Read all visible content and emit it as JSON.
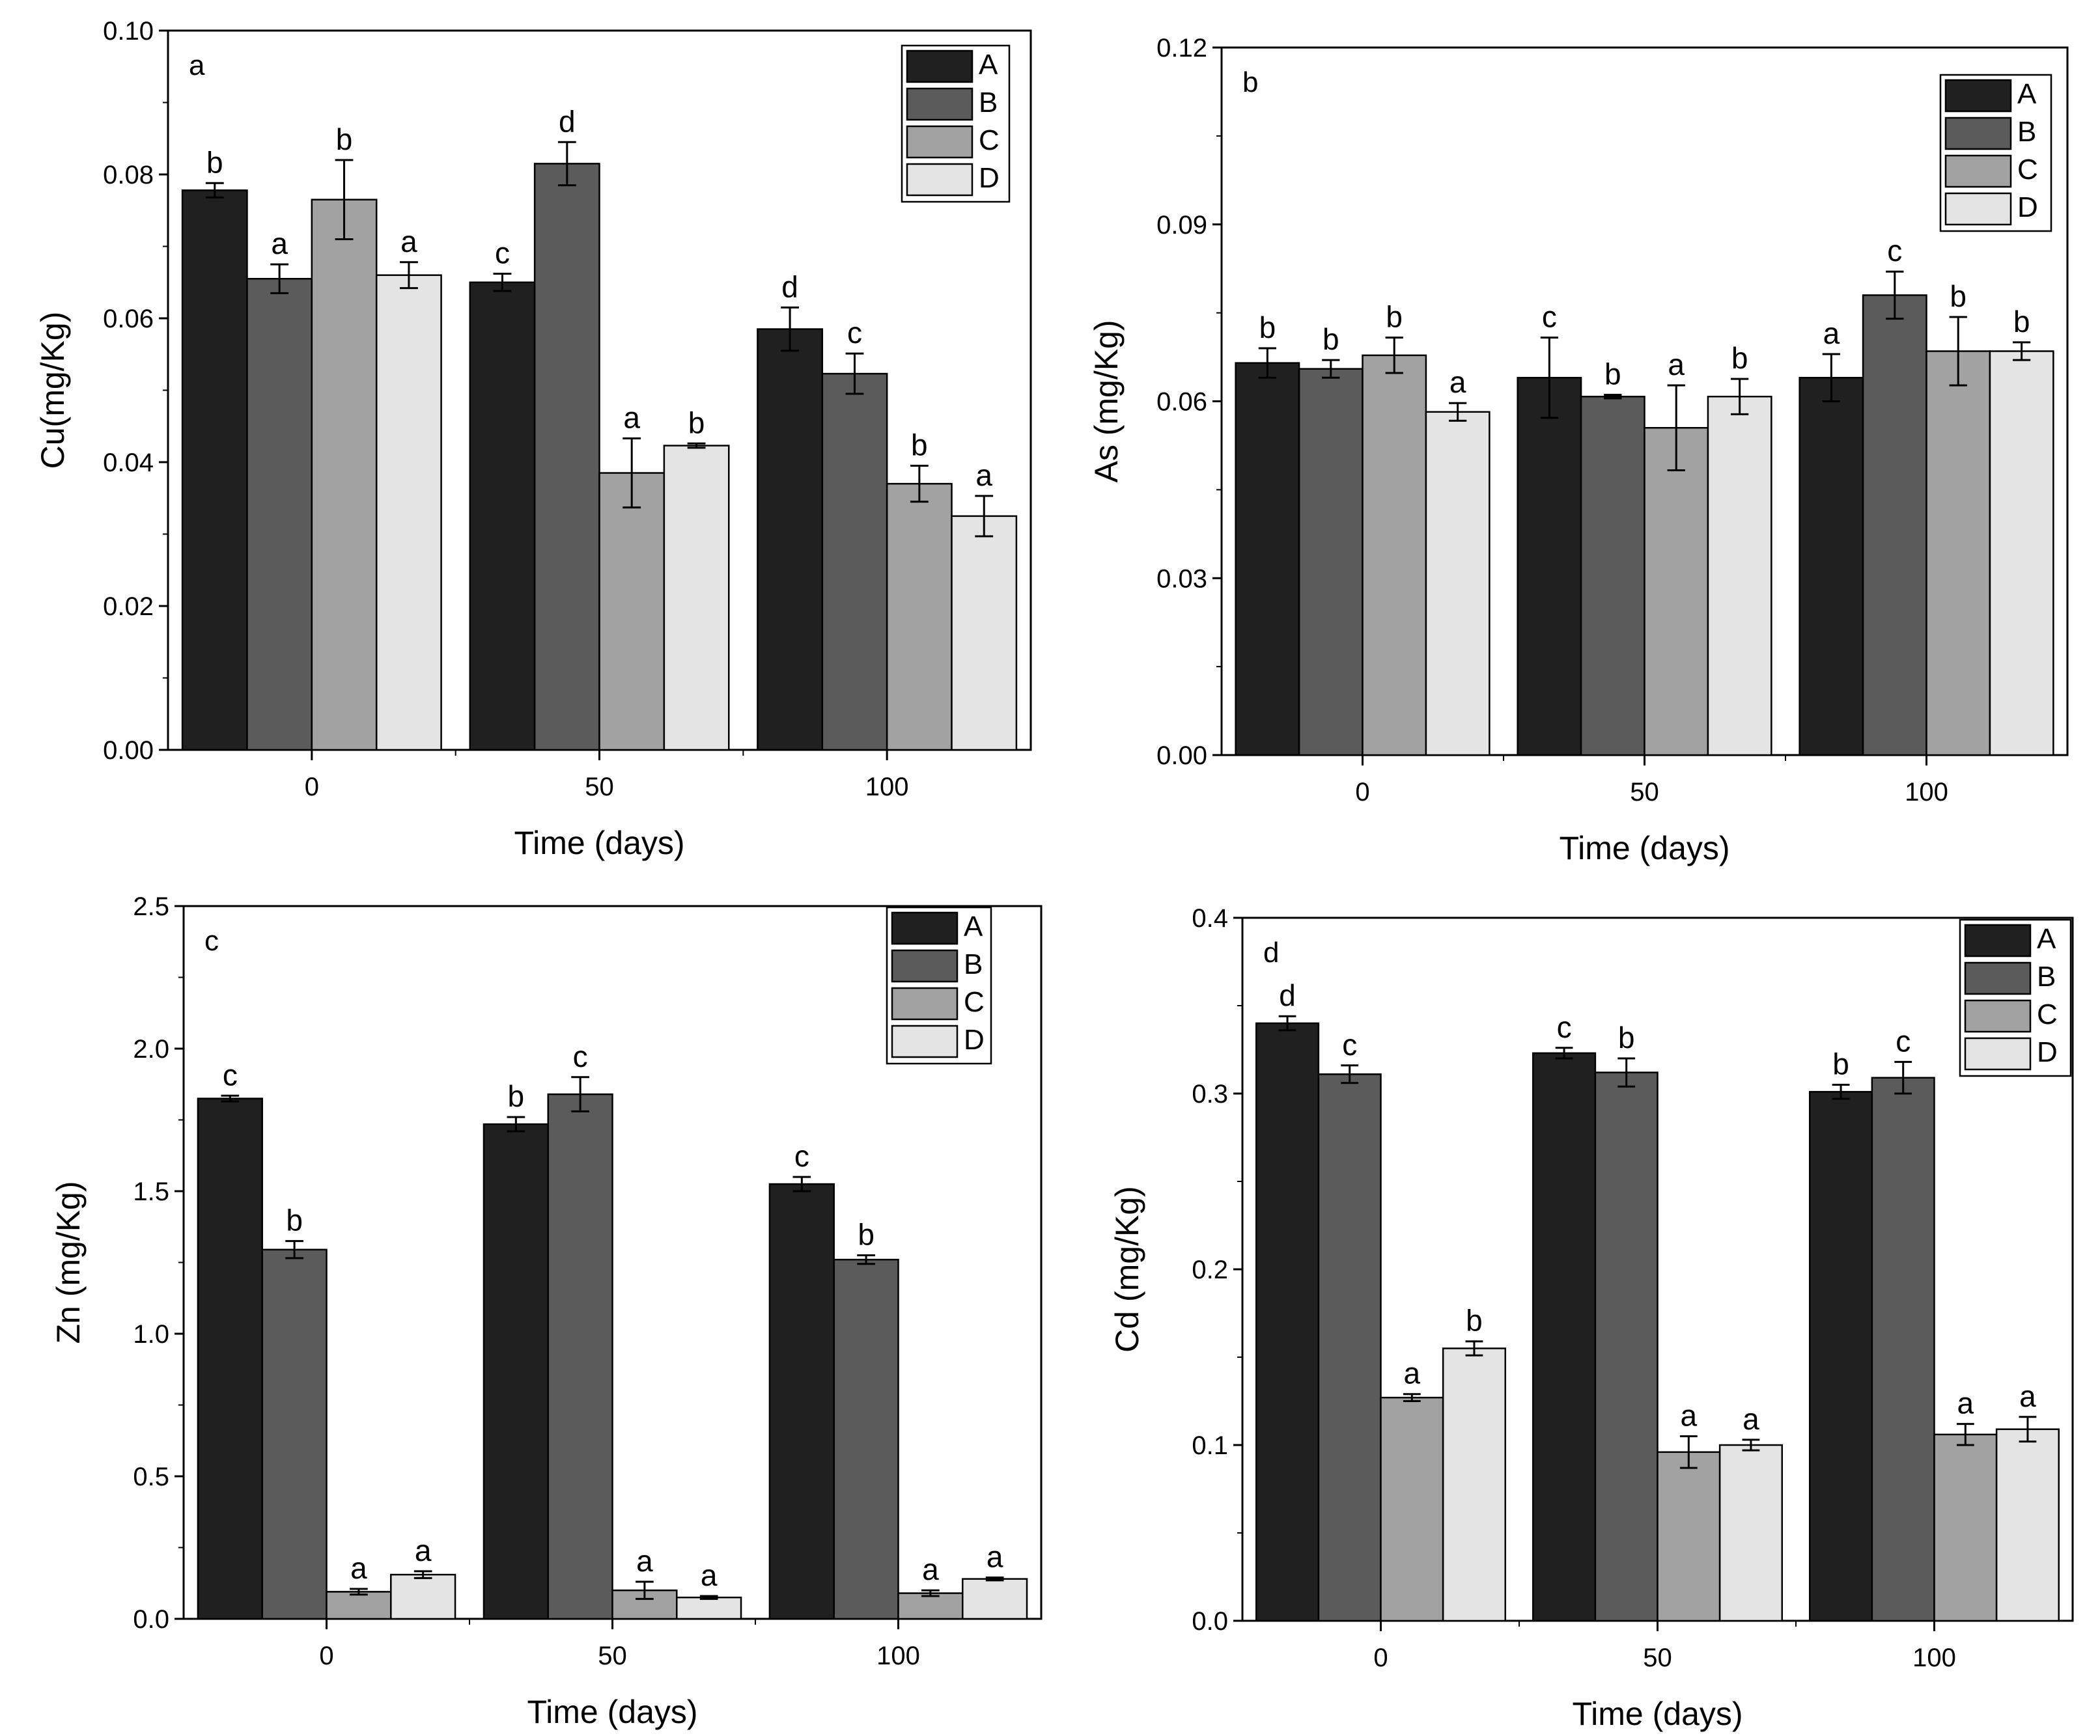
{
  "figure": {
    "series_names": [
      "A",
      "B",
      "C",
      "D"
    ],
    "colors": {
      "A": "#202020",
      "B": "#5b5b5b",
      "C": "#a2a2a2",
      "D": "#e4e4e4"
    }
  },
  "chart_data": [
    {
      "type": "bar",
      "panel_letter": "a",
      "categories": [
        "0",
        "50",
        "100"
      ],
      "xlabel": "Time (days)",
      "ylabel": "Cu(mg/Kg)",
      "ylim": [
        0,
        0.1
      ],
      "yticks": [
        "0.00",
        "0.02",
        "0.04",
        "0.06",
        "0.08",
        "0.10"
      ],
      "legend_position": "top-right",
      "series": [
        {
          "name": "A",
          "values": [
            0.0778,
            0.065,
            0.0585
          ],
          "errors": [
            0.001,
            0.0012,
            0.003
          ],
          "letters": [
            "b",
            "c",
            "d"
          ]
        },
        {
          "name": "B",
          "values": [
            0.0655,
            0.0815,
            0.0523
          ],
          "errors": [
            0.002,
            0.003,
            0.0028
          ],
          "letters": [
            "a",
            "d",
            "c"
          ]
        },
        {
          "name": "C",
          "values": [
            0.0765,
            0.0385,
            0.037
          ],
          "errors": [
            0.0055,
            0.0048,
            0.0025
          ],
          "letters": [
            "b",
            "a",
            "b"
          ]
        },
        {
          "name": "D",
          "values": [
            0.066,
            0.0423,
            0.0325
          ],
          "errors": [
            0.0018,
            0.0003,
            0.0028
          ],
          "letters": [
            "a",
            "b",
            "a"
          ]
        }
      ]
    },
    {
      "type": "bar",
      "panel_letter": "b",
      "categories": [
        "0",
        "50",
        "100"
      ],
      "xlabel": "Time (days)",
      "ylabel": "As (mg/Kg)",
      "ylim": [
        0,
        0.12
      ],
      "yticks": [
        "0.00",
        "0.03",
        "0.06",
        "0.09",
        "0.12"
      ],
      "legend_position": "top-right",
      "series": [
        {
          "name": "A",
          "values": [
            0.0665,
            0.064,
            0.064
          ],
          "errors": [
            0.0025,
            0.0068,
            0.004
          ],
          "letters": [
            "b",
            "c",
            "a"
          ]
        },
        {
          "name": "B",
          "values": [
            0.0655,
            0.0608,
            0.078
          ],
          "errors": [
            0.0015,
            0.0003,
            0.004
          ],
          "letters": [
            "b",
            "b",
            "c"
          ]
        },
        {
          "name": "C",
          "values": [
            0.0678,
            0.0555,
            0.0685
          ],
          "errors": [
            0.003,
            0.0072,
            0.0058
          ],
          "letters": [
            "b",
            "a",
            "b"
          ]
        },
        {
          "name": "D",
          "values": [
            0.0582,
            0.0608,
            0.0685
          ],
          "errors": [
            0.0015,
            0.003,
            0.0015
          ],
          "letters": [
            "a",
            "b",
            "b"
          ]
        }
      ]
    },
    {
      "type": "bar",
      "panel_letter": "c",
      "categories": [
        "0",
        "50",
        "100"
      ],
      "xlabel": "Time (days)",
      "ylabel": "Zn (mg/Kg)",
      "ylim": [
        0,
        2.5
      ],
      "yticks": [
        "0.0",
        "0.5",
        "1.0",
        "1.5",
        "2.0",
        "2.5"
      ],
      "legend_position": "top-right",
      "series": [
        {
          "name": "A",
          "values": [
            1.825,
            1.735,
            1.525
          ],
          "errors": [
            0.01,
            0.025,
            0.025
          ],
          "letters": [
            "c",
            "b",
            "c"
          ]
        },
        {
          "name": "B",
          "values": [
            1.295,
            1.84,
            1.26
          ],
          "errors": [
            0.03,
            0.06,
            0.015
          ],
          "letters": [
            "b",
            "c",
            "b"
          ]
        },
        {
          "name": "C",
          "values": [
            0.095,
            0.1,
            0.09
          ],
          "errors": [
            0.01,
            0.03,
            0.01
          ],
          "letters": [
            "a",
            "a",
            "a"
          ]
        },
        {
          "name": "D",
          "values": [
            0.155,
            0.075,
            0.14
          ],
          "errors": [
            0.012,
            0.005,
            0.005
          ],
          "letters": [
            "a",
            "a",
            "a"
          ]
        }
      ]
    },
    {
      "type": "bar",
      "panel_letter": "d",
      "categories": [
        "0",
        "50",
        "100"
      ],
      "xlabel": "Time (days)",
      "ylabel": "Cd (mg/Kg)",
      "ylim": [
        0,
        0.4
      ],
      "yticks": [
        "0.0",
        "0.1",
        "0.2",
        "0.3",
        "0.4"
      ],
      "legend_position": "top-right",
      "series": [
        {
          "name": "A",
          "values": [
            0.34,
            0.323,
            0.301
          ],
          "errors": [
            0.004,
            0.003,
            0.004
          ],
          "letters": [
            "d",
            "c",
            "b"
          ]
        },
        {
          "name": "B",
          "values": [
            0.311,
            0.312,
            0.309
          ],
          "errors": [
            0.005,
            0.008,
            0.009
          ],
          "letters": [
            "c",
            "b",
            "c"
          ]
        },
        {
          "name": "C",
          "values": [
            0.127,
            0.096,
            0.106
          ],
          "errors": [
            0.002,
            0.009,
            0.006
          ],
          "letters": [
            "a",
            "a",
            "a"
          ]
        },
        {
          "name": "D",
          "values": [
            0.155,
            0.1,
            0.109
          ],
          "errors": [
            0.004,
            0.003,
            0.007
          ],
          "letters": [
            "b",
            "a",
            "a"
          ]
        }
      ]
    }
  ]
}
